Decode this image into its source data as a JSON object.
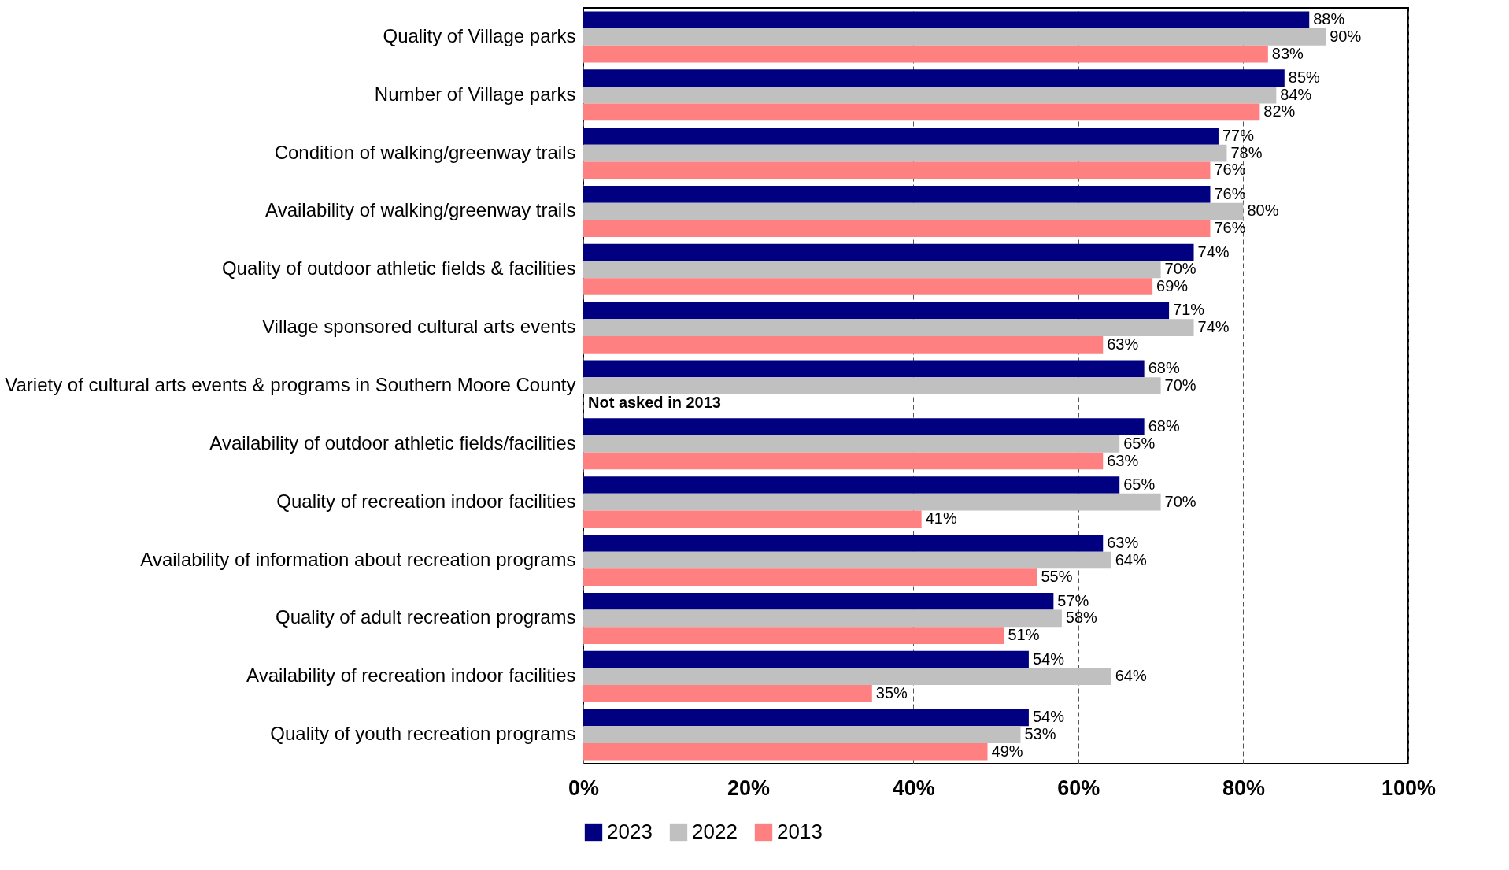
{
  "chart_data": {
    "type": "bar",
    "orientation": "horizontal",
    "categories": [
      "Quality of Village parks",
      "Number of Village parks",
      "Condition of walking/greenway trails",
      "Availability of walking/greenway trails",
      "Quality of outdoor athletic fields & facilities",
      "Village sponsored cultural arts events",
      "Variety of cultural arts events & programs in Southern Moore County",
      "Availability of outdoor athletic fields/facilities",
      "Quality of recreation indoor facilities",
      "Availability of information about recreation programs",
      "Quality of adult recreation programs",
      "Availability of recreation indoor facilities",
      "Quality of youth recreation programs"
    ],
    "series": [
      {
        "name": "2023",
        "color": "#000080",
        "values": [
          88,
          85,
          77,
          76,
          74,
          71,
          68,
          68,
          65,
          63,
          57,
          54,
          54
        ],
        "value_labels": [
          "88%",
          "85%",
          "77%",
          "76%",
          "74%",
          "71%",
          "68%",
          "68%",
          "65%",
          "63%",
          "57%",
          "54%",
          "54%"
        ]
      },
      {
        "name": "2022",
        "color": "#c0c0c0",
        "values": [
          90,
          84,
          78,
          80,
          70,
          74,
          70,
          65,
          70,
          64,
          58,
          64,
          53
        ],
        "value_labels": [
          "90%",
          "84%",
          "78%",
          "80%",
          "70%",
          "74%",
          "70%",
          "65%",
          "70%",
          "64%",
          "58%",
          "64%",
          "53%"
        ]
      },
      {
        "name": "2013",
        "color": "#ff8080",
        "values": [
          83,
          82,
          76,
          76,
          69,
          63,
          null,
          63,
          41,
          55,
          51,
          35,
          49
        ],
        "value_labels": [
          "83%",
          "82%",
          "76%",
          "76%",
          "69%",
          "63%",
          null,
          "63%",
          "41%",
          "55%",
          "51%",
          "35%",
          "49%"
        ]
      }
    ],
    "xlim": [
      0,
      100
    ],
    "xticks": [
      {
        "value": 0,
        "label": "0%"
      },
      {
        "value": 20,
        "label": "20%"
      },
      {
        "value": 40,
        "label": "40%"
      },
      {
        "value": 60,
        "label": "60%"
      },
      {
        "value": 80,
        "label": "80%"
      },
      {
        "value": 100,
        "label": "100%"
      }
    ],
    "annotations": [
      {
        "text": "Not asked in 2013",
        "x": 0,
        "y": "Variety of cultural arts events & programs in Southern Moore County"
      }
    ],
    "grid": "x",
    "legend": "bottom"
  }
}
